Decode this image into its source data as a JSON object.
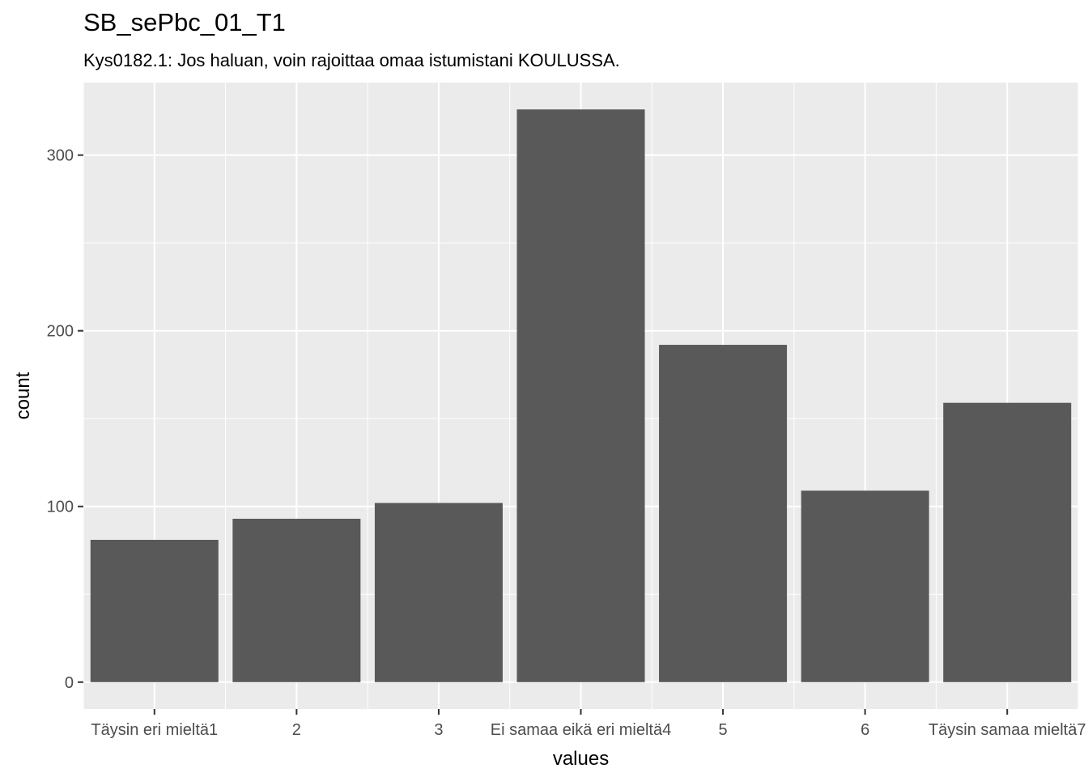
{
  "title": "SB_sePbc_01_T1",
  "subtitle": "Kys0182.1: Jos haluan, voin rajoittaa omaa istumistani KOULUSSA.",
  "chart_data": {
    "type": "bar",
    "title": "SB_sePbc_01_T1",
    "subtitle": "Kys0182.1: Jos haluan, voin rajoittaa omaa istumistani KOULUSSA.",
    "xlabel": "values",
    "ylabel": "count",
    "categories": [
      "Täysin eri mieltä1",
      "2",
      "3",
      "Ei samaa eikä eri mieltä4",
      "5",
      "6",
      "Täysin samaa mieltä7"
    ],
    "values": [
      81,
      93,
      102,
      326,
      192,
      109,
      159
    ],
    "ylim": [
      -15.3,
      341.3
    ],
    "yticks": [
      0,
      100,
      200,
      300
    ],
    "grid": true,
    "colors": {
      "panel": "#ebebeb",
      "grid": "#ffffff",
      "bar": "#595959"
    }
  }
}
